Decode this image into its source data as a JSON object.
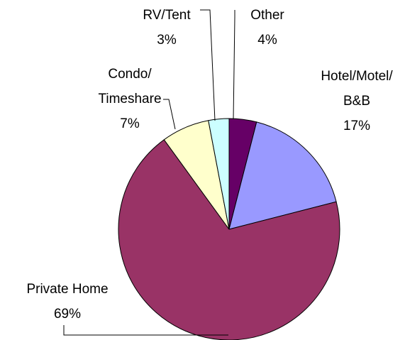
{
  "chart_data": {
    "type": "pie",
    "categories": [
      [
        "Other"
      ],
      [
        "Hotel/Motel/",
        "B&B"
      ],
      [
        "Private Home"
      ],
      [
        "Condo/",
        "Timeshare"
      ],
      [
        "RV/Tent"
      ]
    ],
    "values": [
      4,
      17,
      69,
      7,
      3
    ],
    "value_labels": [
      "4%",
      "17%",
      "69%",
      "7%",
      "3%"
    ],
    "colors": [
      "#660066",
      "#9999ff",
      "#993366",
      "#ffffcc",
      "#ccffff"
    ]
  }
}
